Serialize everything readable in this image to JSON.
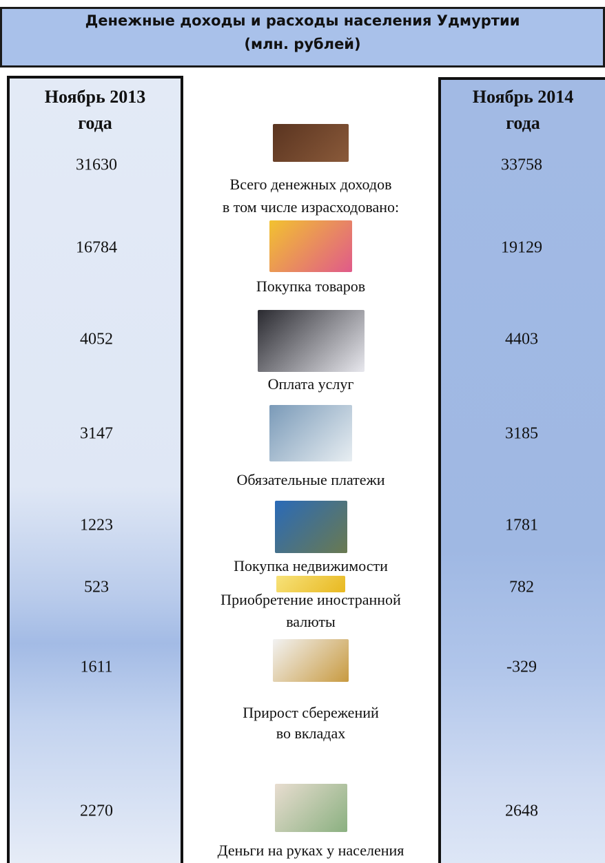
{
  "header": {
    "title": [
      "Денежные доходы и расходы населения Удмуртии",
      "(млн. рублей)"
    ]
  },
  "columns": {
    "left": [
      "Ноябрь 2013",
      "года"
    ],
    "right": [
      "Ноябрь 2014",
      "года"
    ]
  },
  "rows": [
    {
      "label": [
        "Всего денежных доходов",
        "в том числе израсходовано:"
      ],
      "left": 31630,
      "right": 33758
    },
    {
      "label": [
        "Покупка товаров"
      ],
      "left": 16784,
      "right": 19129
    },
    {
      "label": [
        "Оплата услуг"
      ],
      "left": 4052,
      "right": 4403
    },
    {
      "label": [
        "Обязательные платежи"
      ],
      "left": 3147,
      "right": 3185
    },
    {
      "label": [
        "Покупка недвижимости"
      ],
      "left": 1223,
      "right": 1781
    },
    {
      "label": [
        "Приобретение иностранной",
        "валюты"
      ],
      "left": 523,
      "right": 782
    },
    {
      "label": [
        "Прирост сбережений",
        "во вкладах"
      ],
      "left": 1611,
      "right": -329
    },
    {
      "label": [
        "Деньги на руках у населения"
      ],
      "left": 2270,
      "right": 2648
    }
  ]
}
